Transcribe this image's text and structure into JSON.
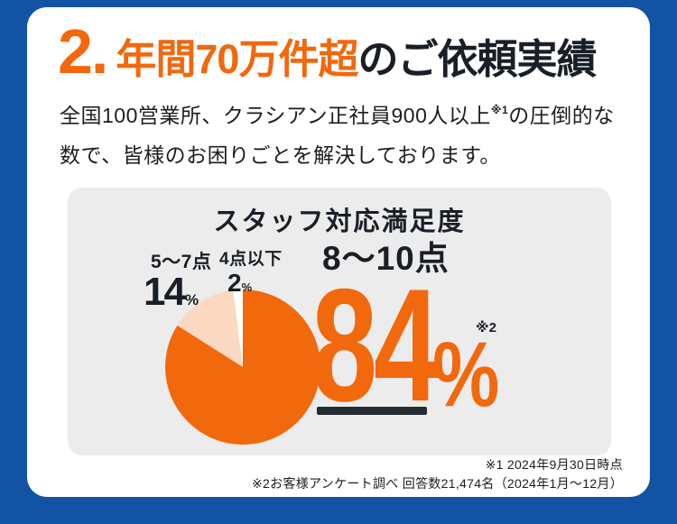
{
  "colors": {
    "blue": "#1254a3",
    "orange": "#f2680c",
    "peach": "#fbd8c2",
    "panel": "#ececec",
    "text": "#191f26",
    "accent_dark": "#252b33"
  },
  "heading": {
    "number": "2.",
    "highlight": "年間70万件超",
    "rest": "のご依頼実績"
  },
  "intro": {
    "before_sup": "全国100営業所、クラシアン正社員900人以上",
    "sup": "※1",
    "after_sup": "の圧倒的な",
    "line2": "数で、皆様のお困りごとを解決しております。"
  },
  "chart_data": {
    "type": "pie",
    "title": "スタッフ対応満足度",
    "unit": "%",
    "start": "top",
    "direction": "clockwise",
    "legend_position": "none",
    "note_ref": "※2",
    "slices": [
      {
        "label": "8〜10点",
        "value": 84,
        "color": "#f2680c"
      },
      {
        "label": "5〜7点",
        "value": 14,
        "color": "#fbd8c2"
      },
      {
        "label": "4点以下",
        "value": 2,
        "color": "#ffffff"
      }
    ]
  },
  "footnotes": {
    "note1": "※1 2024年9月30日時点",
    "note2": "※2お客様アンケート調べ 回答数21,474名（2024年1月〜12月）"
  }
}
